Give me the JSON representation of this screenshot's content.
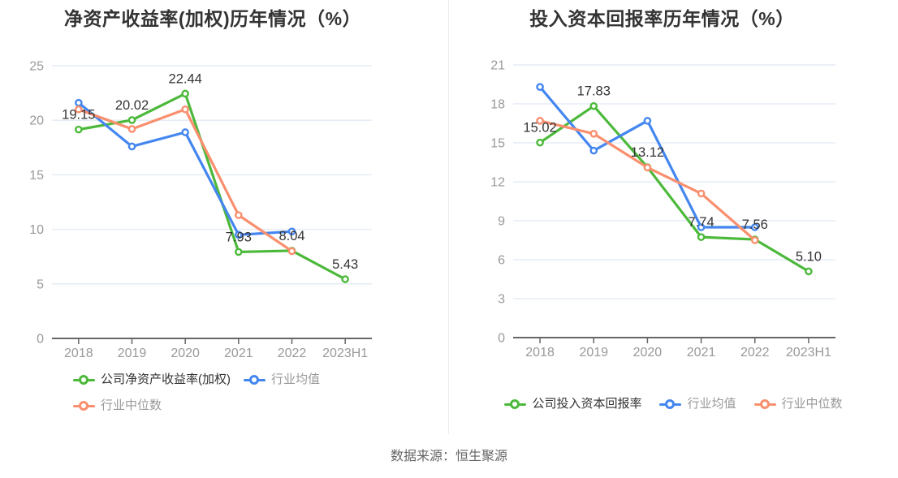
{
  "page": {
    "footer_source": "数据来源：恒生聚源"
  },
  "colors": {
    "company": "#4cb93b",
    "industry_avg": "#4486f0",
    "industry_median": "#f98f6e",
    "grid_line": "#e6ecf5",
    "axis_line": "#666666",
    "tick_label": "#999999",
    "data_label": "#333333",
    "title": "#333333",
    "legend_active_label": "#333333",
    "legend_muted_label": "#999999",
    "divider": "#ececec",
    "footer_text": "#666666",
    "background": "#ffffff"
  },
  "chart_data": [
    {
      "type": "line",
      "title": "净资产收益率(加权)历年情况（%）",
      "categories": [
        "2018",
        "2019",
        "2020",
        "2021",
        "2022",
        "2023H1"
      ],
      "xlabel": "",
      "ylabel": "",
      "ylim": [
        0,
        25
      ],
      "ytick_step": 5,
      "grid": true,
      "legend_position": "bottom",
      "series": [
        {
          "name": "公司净资产收益率(加权)",
          "color_key": "company",
          "values": [
            19.15,
            20.02,
            22.44,
            7.93,
            8.04,
            5.43
          ],
          "labels": [
            "19.15",
            "20.02",
            "22.44",
            "7.93",
            "8.04",
            "5.43"
          ]
        },
        {
          "name": "行业均值",
          "color_key": "industry_avg",
          "values": [
            21.6,
            17.6,
            18.9,
            9.5,
            9.8,
            null
          ],
          "labels": null
        },
        {
          "name": "行业中位数",
          "color_key": "industry_median",
          "values": [
            21.0,
            19.2,
            21.0,
            11.3,
            8.0,
            null
          ],
          "labels": null
        }
      ]
    },
    {
      "type": "line",
      "title": "投入资本回报率历年情况（%）",
      "categories": [
        "2018",
        "2019",
        "2020",
        "2021",
        "2022",
        "2023H1"
      ],
      "xlabel": "",
      "ylabel": "",
      "ylim": [
        0,
        21
      ],
      "ytick_step": 3,
      "grid": true,
      "legend_position": "bottom",
      "series": [
        {
          "name": "公司投入资本回报率",
          "color_key": "company",
          "values": [
            15.02,
            17.83,
            13.12,
            7.74,
            7.56,
            5.1
          ],
          "labels": [
            "15.02",
            "17.83",
            "13.12",
            "7.74",
            "7.56",
            "5.10"
          ]
        },
        {
          "name": "行业均值",
          "color_key": "industry_avg",
          "values": [
            19.3,
            14.4,
            16.7,
            8.5,
            8.5,
            null
          ],
          "labels": null
        },
        {
          "name": "行业中位数",
          "color_key": "industry_median",
          "values": [
            16.7,
            15.7,
            13.1,
            11.1,
            7.5,
            null
          ],
          "labels": null
        }
      ]
    }
  ]
}
